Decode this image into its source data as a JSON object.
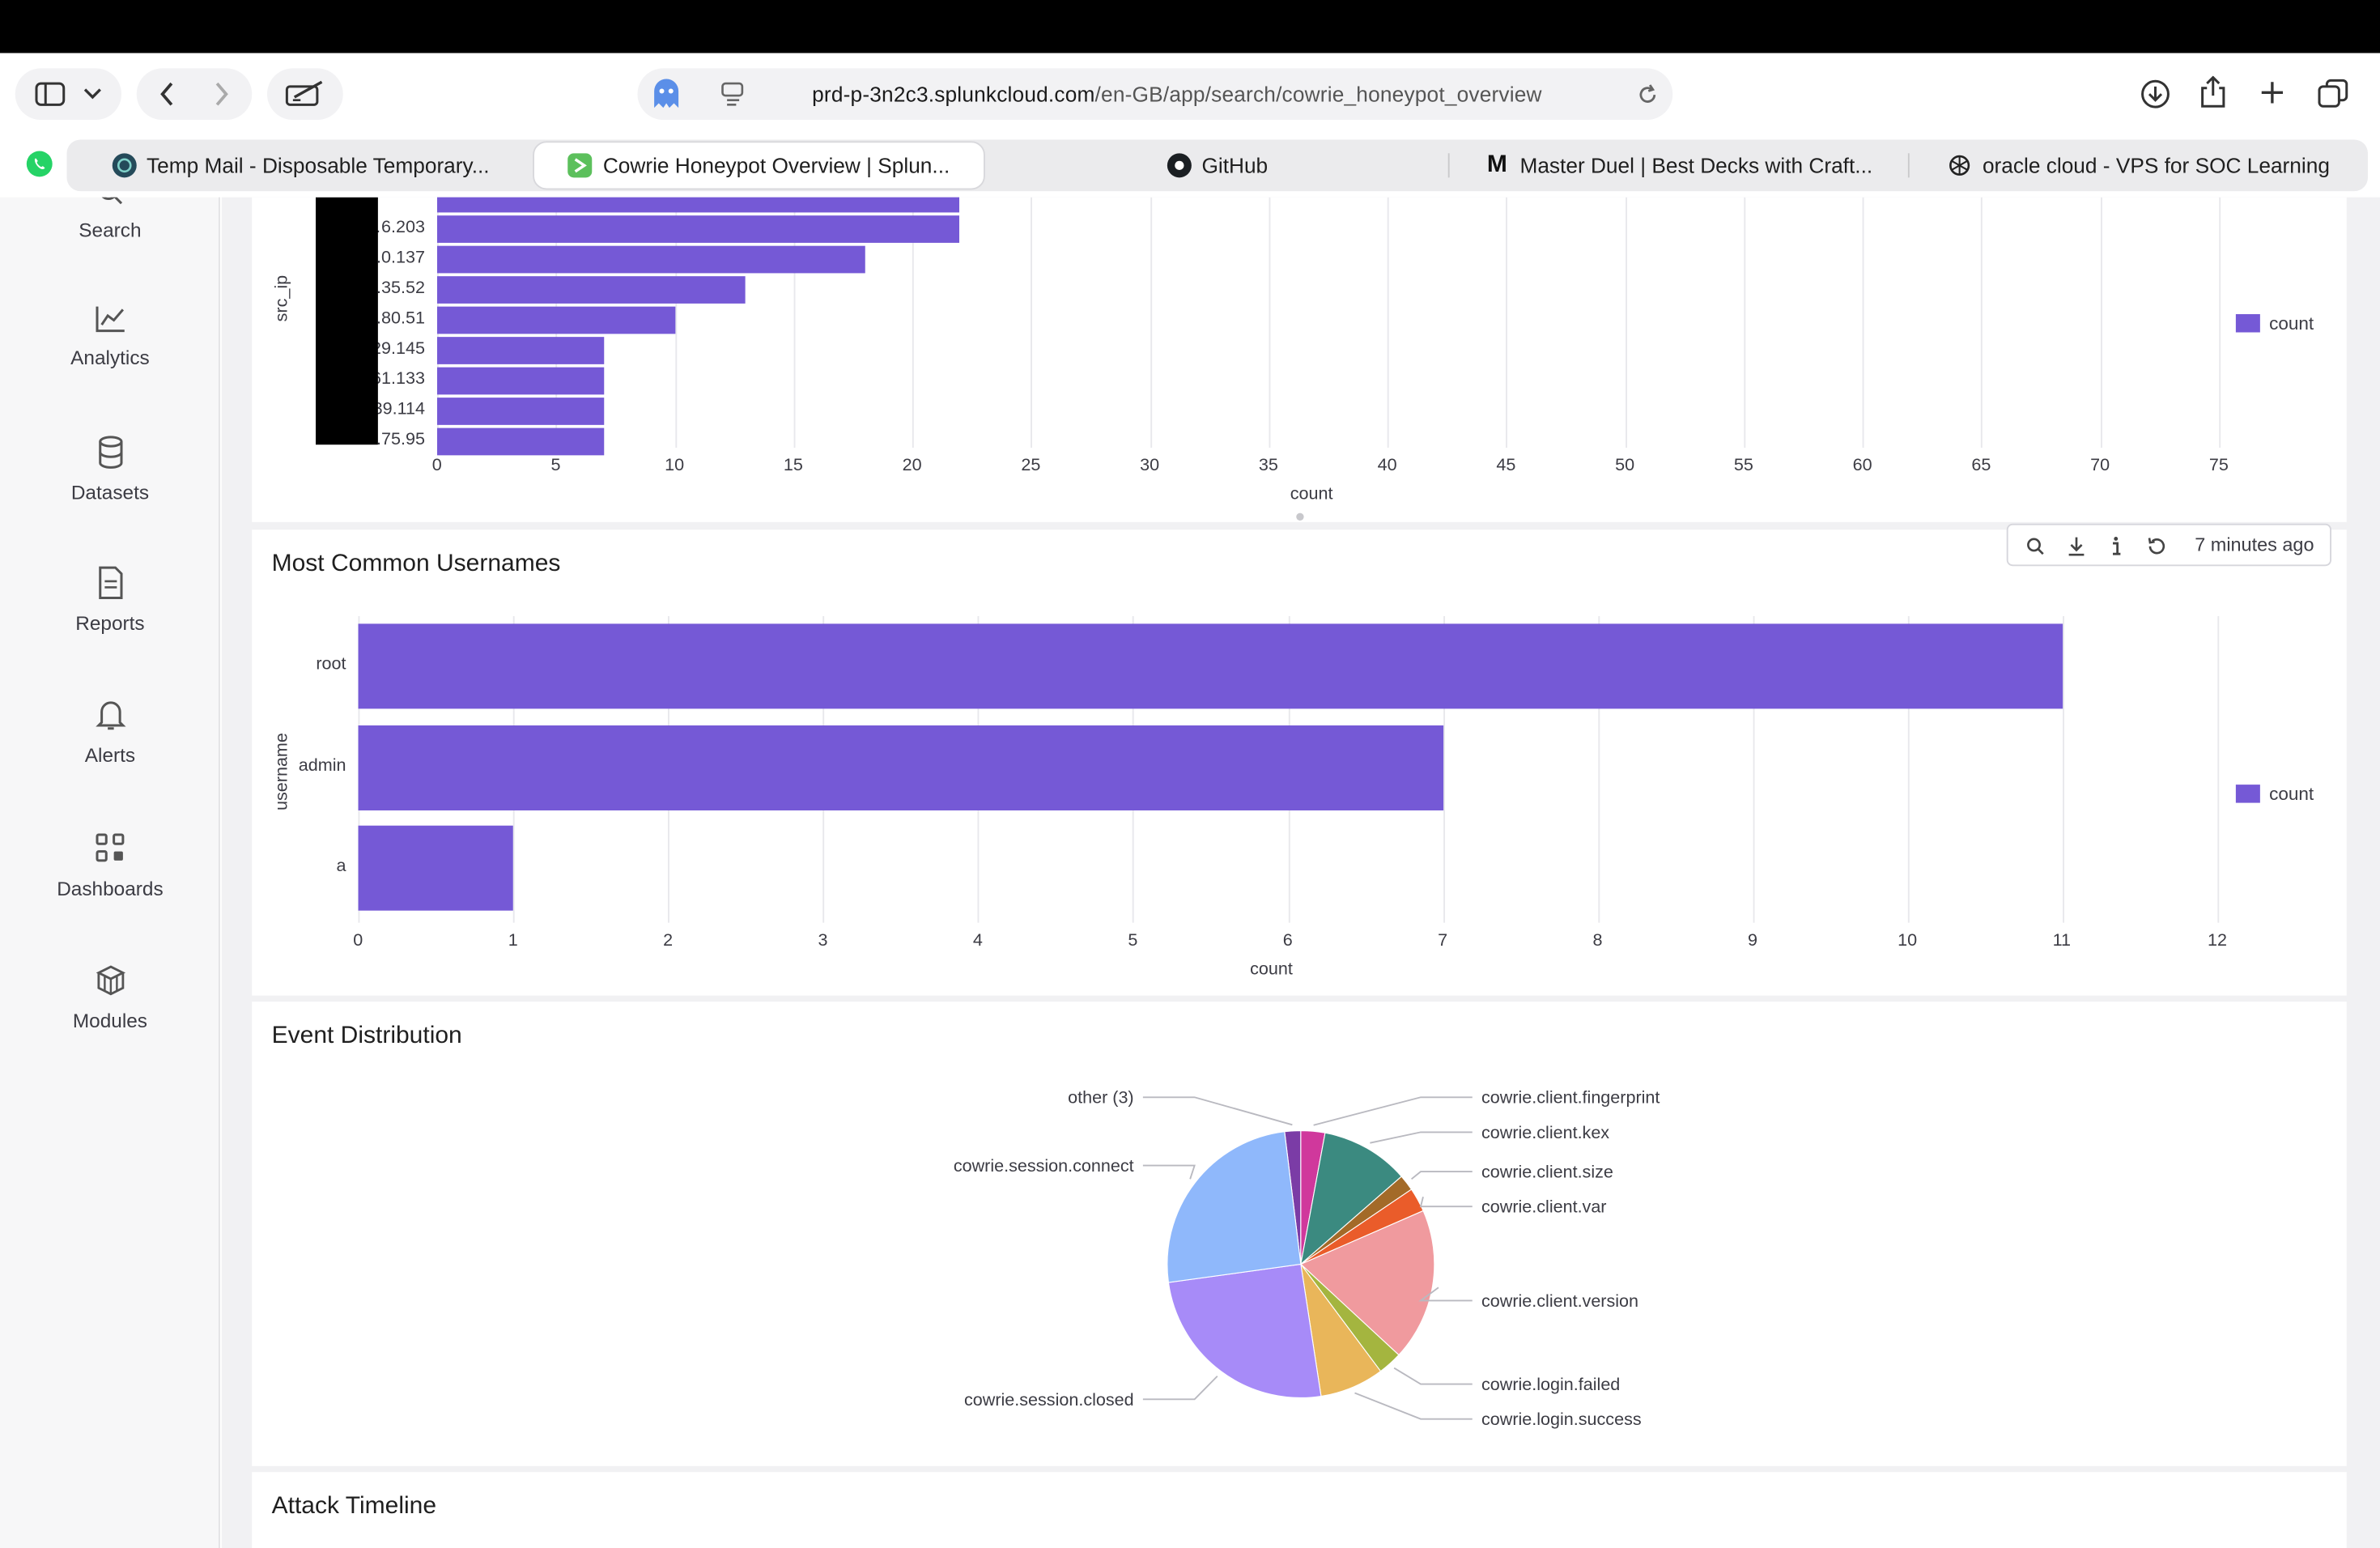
{
  "browser": {
    "url_host": "prd-p-3n2c3.splunkcloud.com",
    "url_path": "/en-GB/app/search/cowrie_honeypot_overview",
    "tabs": [
      {
        "label": "Temp Mail - Disposable Temporary..."
      },
      {
        "label": "Cowrie Honeypot Overview | Splun..."
      },
      {
        "label": "GitHub"
      },
      {
        "label": "Master Duel | Best Decks with Craft..."
      },
      {
        "label": "oracle cloud - VPS for SOC Learning"
      }
    ]
  },
  "sidebar": {
    "items": [
      {
        "label": "Search",
        "icon": "search-icon"
      },
      {
        "label": "Analytics",
        "icon": "chart-line-icon"
      },
      {
        "label": "Datasets",
        "icon": "database-icon"
      },
      {
        "label": "Reports",
        "icon": "document-icon"
      },
      {
        "label": "Alerts",
        "icon": "bell-icon"
      },
      {
        "label": "Dashboards",
        "icon": "dashboard-grid-icon"
      },
      {
        "label": "Modules",
        "icon": "cubes-icon"
      }
    ]
  },
  "colors": {
    "bar": "#7559d6",
    "pie": [
      "#7b3ca6",
      "#d0389c",
      "#3b8a80",
      "#a36a28",
      "#ea5c2a",
      "#f09a9e",
      "#a4b53f",
      "#e9b65a",
      "#a78bf8",
      "#8fb8fb"
    ]
  },
  "panels": {
    "top": {
      "legend": "count"
    },
    "usernames": {
      "title": "Most Common Usernames",
      "legend": "count",
      "refreshed": "7 minutes ago"
    },
    "events": {
      "title": "Event Distribution"
    },
    "timeline": {
      "title": "Attack Timeline"
    }
  },
  "chart_data": [
    {
      "type": "bar",
      "orientation": "horizontal",
      "title": "",
      "xlabel": "count",
      "ylabel": "src_ip",
      "xlim": [
        0,
        75
      ],
      "xticks": [
        0,
        5,
        10,
        15,
        20,
        25,
        30,
        35,
        40,
        45,
        50,
        55,
        60,
        65,
        70,
        75
      ],
      "categories": [
        "",
        "51.…6.203",
        "19….0.137",
        "….35.52",
        "….80.51",
        "1….29.145",
        "16….61.133",
        "….39.114",
        "22….75.95"
      ],
      "values": [
        22,
        22,
        18,
        13,
        10,
        7,
        7,
        7,
        7
      ],
      "legend": [
        "count"
      ],
      "grid": true
    },
    {
      "type": "bar",
      "orientation": "horizontal",
      "title": "Most Common Usernames",
      "xlabel": "count",
      "ylabel": "username",
      "xlim": [
        0,
        12
      ],
      "xticks": [
        0,
        1,
        2,
        3,
        4,
        5,
        6,
        7,
        8,
        9,
        10,
        11,
        12
      ],
      "categories": [
        "root",
        "admin",
        "a"
      ],
      "values": [
        11,
        7,
        1
      ],
      "legend": [
        "count"
      ],
      "grid": true
    },
    {
      "type": "pie",
      "title": "Event Distribution",
      "labels": [
        "other (3)",
        "cowrie.client.fingerprint",
        "cowrie.client.kex",
        "cowrie.client.size",
        "cowrie.client.var",
        "cowrie.client.version",
        "cowrie.login.failed",
        "cowrie.login.success",
        "cowrie.session.closed",
        "cowrie.session.connect"
      ],
      "values": [
        2,
        3,
        11,
        2,
        3,
        19,
        3,
        8,
        26,
        26
      ]
    }
  ]
}
